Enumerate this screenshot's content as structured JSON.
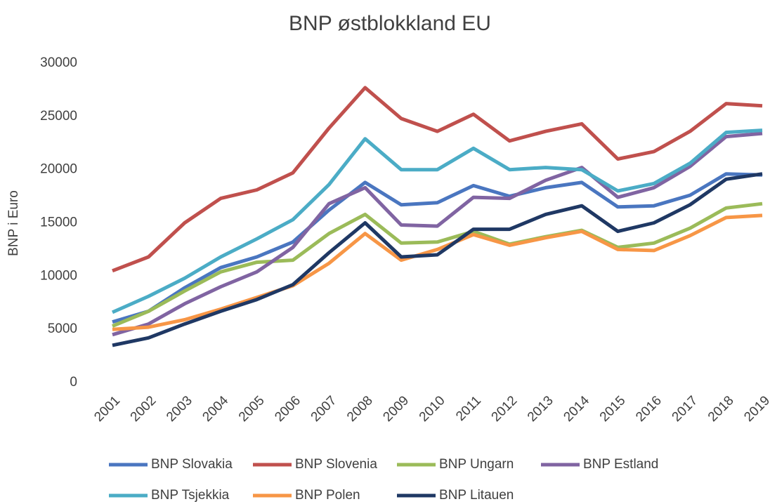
{
  "chart_data": {
    "type": "line",
    "title": "BNP østblokkland EU",
    "y_label": "BNP i Euro",
    "categories": [
      "2001",
      "2002",
      "2003",
      "2004",
      "2005",
      "2006",
      "2007",
      "2008",
      "2009",
      "2010",
      "2011",
      "2012",
      "2013",
      "2014",
      "2015",
      "2016",
      "2017",
      "2018",
      "2019"
    ],
    "ylim": [
      0,
      30000
    ],
    "yticks": [
      0,
      5000,
      10000,
      15000,
      20000,
      25000,
      30000
    ],
    "grid": false,
    "legend": "bottom",
    "series": [
      {
        "name": "BNP Slovakia",
        "color": "#4a76c0",
        "values": [
          5700,
          6700,
          8900,
          10800,
          11800,
          13200,
          16200,
          18800,
          16700,
          16900,
          18500,
          17500,
          18300,
          18800,
          16500,
          16600,
          17600,
          19600,
          19500
        ]
      },
      {
        "name": "BNP Slovenia",
        "color": "#c0504d",
        "values": [
          10500,
          11800,
          15000,
          17300,
          18100,
          19700,
          23900,
          27700,
          24800,
          23600,
          25200,
          22700,
          23600,
          24300,
          21000,
          21700,
          23600,
          26200,
          26000
        ]
      },
      {
        "name": "BNP Ungarn",
        "color": "#9bbb59",
        "values": [
          5300,
          6700,
          8600,
          10400,
          11300,
          11500,
          14000,
          15800,
          13100,
          13200,
          14200,
          13000,
          13700,
          14300,
          12700,
          13100,
          14500,
          16400,
          16800
        ]
      },
      {
        "name": "BNP Estland",
        "color": "#8064a2",
        "values": [
          4500,
          5500,
          7400,
          9000,
          10400,
          12700,
          16800,
          18300,
          14800,
          14700,
          17400,
          17300,
          19000,
          20200,
          17400,
          18300,
          20300,
          23100,
          23400
        ]
      },
      {
        "name": "BNP Tsjekkia",
        "color": "#4bacc6",
        "values": [
          6600,
          8100,
          9800,
          11800,
          13500,
          15300,
          18600,
          22900,
          20000,
          20000,
          22000,
          20000,
          20200,
          20000,
          18000,
          18700,
          20600,
          23500,
          23700
        ]
      },
      {
        "name": "BNP Polen",
        "color": "#f79646",
        "values": [
          5000,
          5200,
          5900,
          6900,
          8000,
          9100,
          11200,
          14000,
          11500,
          12500,
          13900,
          12900,
          13600,
          14200,
          12500,
          12400,
          13800,
          15500,
          15700
        ]
      },
      {
        "name": "BNP Litauen",
        "color": "#1f3864",
        "values": [
          3500,
          4200,
          5500,
          6700,
          7800,
          9200,
          12200,
          15000,
          11800,
          12000,
          14400,
          14400,
          15800,
          16600,
          14200,
          15000,
          16700,
          19100,
          19600
        ]
      }
    ]
  }
}
